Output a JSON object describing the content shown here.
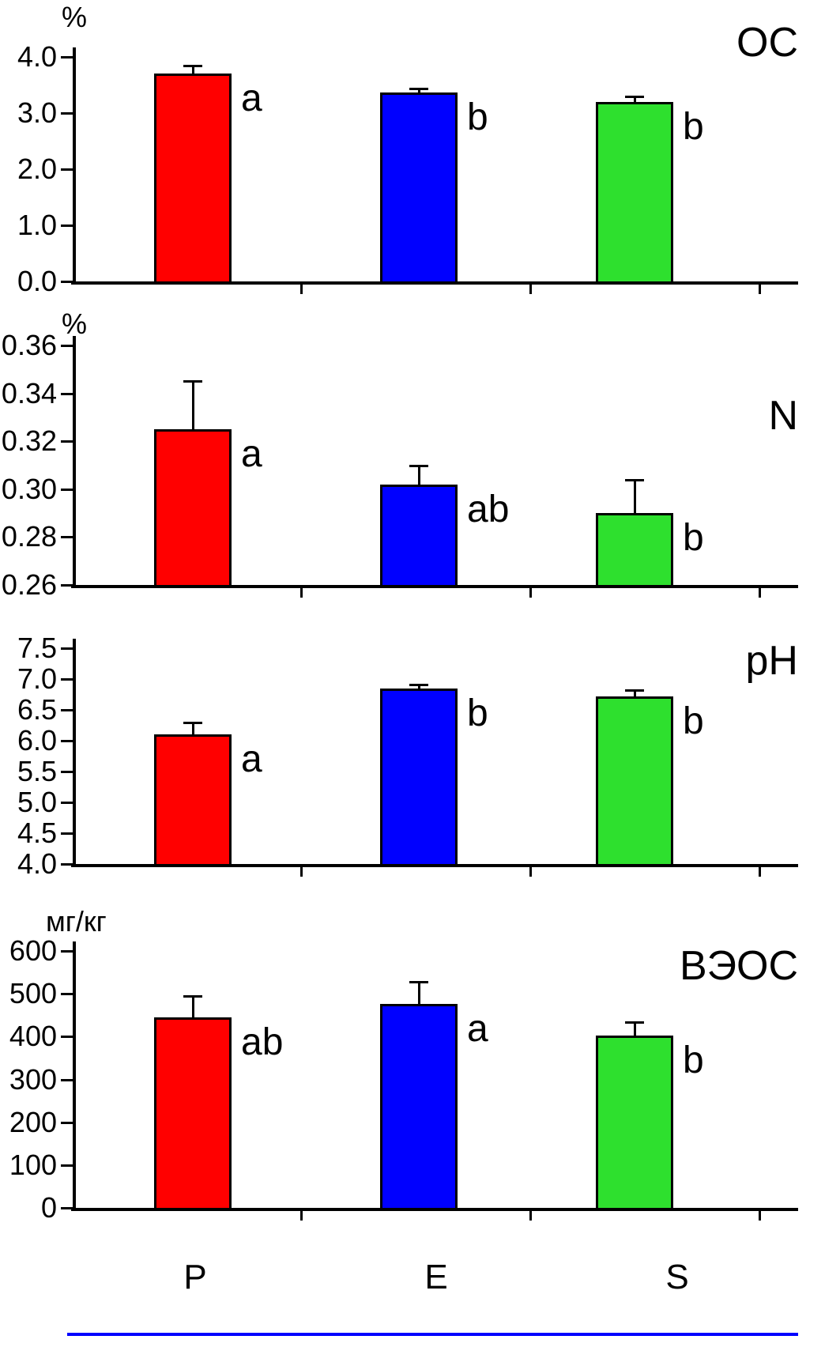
{
  "figure": {
    "background": "#ffffff",
    "axis_color": "#000000",
    "bottom_rule_color": "#0000ff",
    "x_categories": [
      "P",
      "E",
      "S"
    ],
    "bar_colors": [
      "#ff0000",
      "#0000ff",
      "#2ee02e"
    ]
  },
  "chart_data": [
    {
      "type": "bar",
      "title": "ОС",
      "unit": "%",
      "categories": [
        "P",
        "E",
        "S"
      ],
      "values": [
        3.7,
        3.37,
        3.2
      ],
      "errors_up": [
        0.15,
        0.06,
        0.1
      ],
      "sig_letters": [
        "a",
        "b",
        "b"
      ],
      "ylim": [
        0.0,
        4.0
      ],
      "yticks": [
        "0.0",
        "1.0",
        "2.0",
        "3.0",
        "4.0"
      ],
      "legend": "none",
      "grid": "off",
      "bar_colors": [
        "#ff0000",
        "#0000ff",
        "#2ee02e"
      ]
    },
    {
      "type": "bar",
      "title": "N",
      "unit": "%",
      "categories": [
        "P",
        "E",
        "S"
      ],
      "values": [
        0.325,
        0.302,
        0.29
      ],
      "errors_up": [
        0.02,
        0.008,
        0.014
      ],
      "sig_letters": [
        "a",
        "ab",
        "b"
      ],
      "ylim": [
        0.26,
        0.36
      ],
      "yticks": [
        "0.26",
        "0.28",
        "0.30",
        "0.32",
        "0.34",
        "0.36"
      ],
      "legend": "none",
      "grid": "off",
      "bar_colors": [
        "#ff0000",
        "#0000ff",
        "#2ee02e"
      ]
    },
    {
      "type": "bar",
      "title": "pH",
      "unit": "",
      "categories": [
        "P",
        "E",
        "S"
      ],
      "values": [
        6.1,
        6.85,
        6.72
      ],
      "errors_up": [
        0.2,
        0.06,
        0.1
      ],
      "sig_letters": [
        "a",
        "b",
        "b"
      ],
      "ylim": [
        4.0,
        7.5
      ],
      "yticks": [
        "4.0",
        "4.5",
        "5.0",
        "5.5",
        "6.0",
        "6.5",
        "7.0",
        "7.5"
      ],
      "legend": "none",
      "grid": "off",
      "bar_colors": [
        "#ff0000",
        "#0000ff",
        "#2ee02e"
      ]
    },
    {
      "type": "bar",
      "title": "ВЭОС",
      "unit": "мг/кг",
      "categories": [
        "P",
        "E",
        "S"
      ],
      "values": [
        445,
        476,
        402
      ],
      "errors_up": [
        50,
        52,
        32
      ],
      "sig_letters": [
        "ab",
        "a",
        "b"
      ],
      "ylim": [
        0,
        600
      ],
      "yticks": [
        "0",
        "100",
        "200",
        "300",
        "400",
        "500",
        "600"
      ],
      "legend": "none",
      "grid": "off",
      "bar_colors": [
        "#ff0000",
        "#0000ff",
        "#2ee02e"
      ]
    }
  ]
}
